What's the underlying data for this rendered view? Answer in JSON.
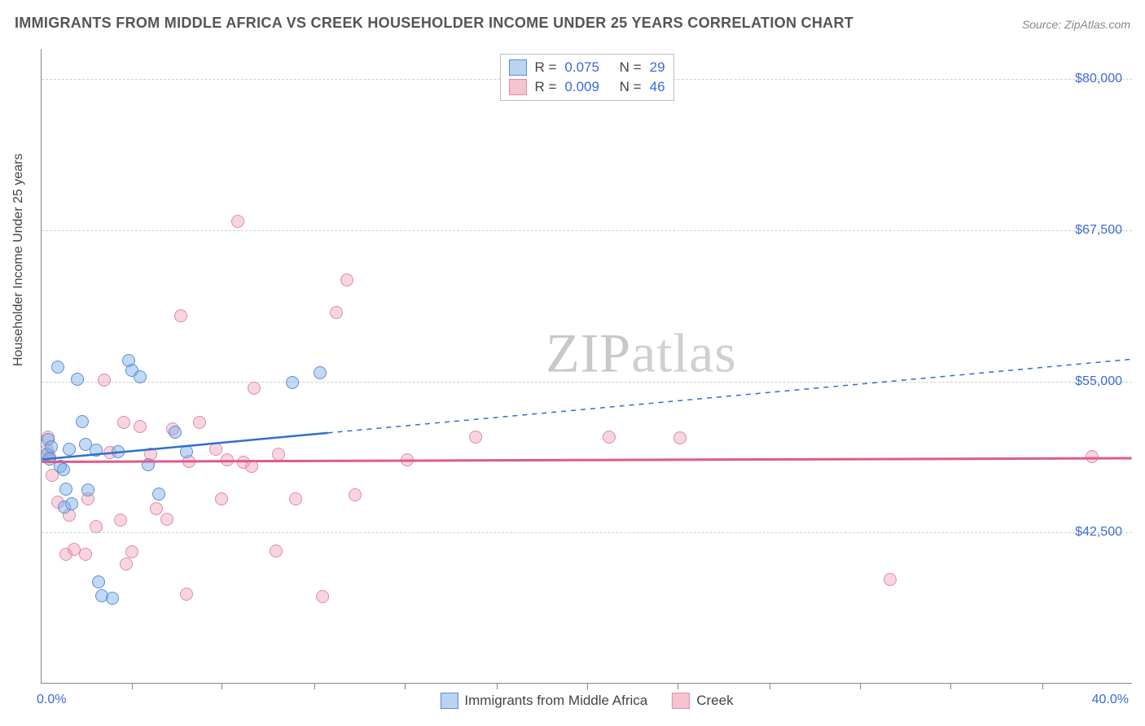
{
  "title": "IMMIGRANTS FROM MIDDLE AFRICA VS CREEK HOUSEHOLDER INCOME UNDER 25 YEARS CORRELATION CHART",
  "source_label": "Source:",
  "source_name": "ZipAtlas.com",
  "ylabel": "Householder Income Under 25 years",
  "watermark_a": "ZIP",
  "watermark_b": "atlas",
  "chart": {
    "type": "scatter",
    "xlim": [
      0,
      40
    ],
    "ylim": [
      30000,
      82500
    ],
    "x_min_label": "0.0%",
    "x_max_label": "40.0%",
    "x_tick_positions": [
      3.3,
      6.6,
      10,
      13.3,
      16.7,
      20,
      23.3,
      26.7,
      30,
      33.3,
      36.7
    ],
    "y_ticks": [
      {
        "v": 42500,
        "label": "$42,500"
      },
      {
        "v": 55000,
        "label": "$55,000"
      },
      {
        "v": 67500,
        "label": "$67,500"
      },
      {
        "v": 80000,
        "label": "$80,000"
      }
    ],
    "background_color": "#ffffff",
    "grid_color": "#d0d0d0",
    "axis_color": "#888888",
    "marker_radius": 8,
    "marker_stroke_width": 1.5
  },
  "series": {
    "blue": {
      "name": "Immigrants from Middle Africa",
      "fill": "#b9d3f0",
      "fill_alpha": "rgba(120,170,230,0.45)",
      "stroke": "#5a8fd6",
      "line_color": "#2f6fd0",
      "R": "0.075",
      "N": "29",
      "trend": {
        "x1": 0,
        "y1": 48500,
        "x2_solid": 10.5,
        "y2_solid": 50700,
        "x2_dash": 40,
        "y2_dash": 56800,
        "width": 2.5
      },
      "points": [
        {
          "x": 0.2,
          "y": 49000
        },
        {
          "x": 0.25,
          "y": 50200
        },
        {
          "x": 0.3,
          "y": 48600
        },
        {
          "x": 0.35,
          "y": 49600
        },
        {
          "x": 0.6,
          "y": 56200
        },
        {
          "x": 0.7,
          "y": 48000
        },
        {
          "x": 0.8,
          "y": 47700
        },
        {
          "x": 0.85,
          "y": 44600
        },
        {
          "x": 0.9,
          "y": 46100
        },
        {
          "x": 1.0,
          "y": 49400
        },
        {
          "x": 1.1,
          "y": 44900
        },
        {
          "x": 1.3,
          "y": 55200
        },
        {
          "x": 1.5,
          "y": 51700
        },
        {
          "x": 1.6,
          "y": 49800
        },
        {
          "x": 1.7,
          "y": 46000
        },
        {
          "x": 2.0,
          "y": 49300
        },
        {
          "x": 2.1,
          "y": 38400
        },
        {
          "x": 2.2,
          "y": 37300
        },
        {
          "x": 2.6,
          "y": 37100
        },
        {
          "x": 2.8,
          "y": 49200
        },
        {
          "x": 3.2,
          "y": 56700
        },
        {
          "x": 3.3,
          "y": 55900
        },
        {
          "x": 3.6,
          "y": 55400
        },
        {
          "x": 3.9,
          "y": 48100
        },
        {
          "x": 4.3,
          "y": 45700
        },
        {
          "x": 4.9,
          "y": 50800
        },
        {
          "x": 5.3,
          "y": 49200
        },
        {
          "x": 9.2,
          "y": 54900
        },
        {
          "x": 10.2,
          "y": 55700
        }
      ]
    },
    "pink": {
      "name": "Creek",
      "fill": "#f5c4d0",
      "fill_alpha": "rgba(235,150,175,0.40)",
      "stroke": "#e58aa5",
      "line_color": "#e05a8a",
      "R": "0.009",
      "N": "46",
      "trend": {
        "x1": 0,
        "y1": 48300,
        "x2": 40,
        "y2": 48600,
        "width": 3
      },
      "points": [
        {
          "x": 0.2,
          "y": 49300
        },
        {
          "x": 0.25,
          "y": 50400
        },
        {
          "x": 0.3,
          "y": 48800
        },
        {
          "x": 0.4,
          "y": 47200
        },
        {
          "x": 0.6,
          "y": 45000
        },
        {
          "x": 0.9,
          "y": 40700
        },
        {
          "x": 1.0,
          "y": 43900
        },
        {
          "x": 1.2,
          "y": 41100
        },
        {
          "x": 1.6,
          "y": 40700
        },
        {
          "x": 1.7,
          "y": 45300
        },
        {
          "x": 2.0,
          "y": 43000
        },
        {
          "x": 2.3,
          "y": 55100
        },
        {
          "x": 2.5,
          "y": 49100
        },
        {
          "x": 2.9,
          "y": 43500
        },
        {
          "x": 3.0,
          "y": 51600
        },
        {
          "x": 3.1,
          "y": 39900
        },
        {
          "x": 3.3,
          "y": 40900
        },
        {
          "x": 3.6,
          "y": 51300
        },
        {
          "x": 4.0,
          "y": 49000
        },
        {
          "x": 4.2,
          "y": 44500
        },
        {
          "x": 4.6,
          "y": 43600
        },
        {
          "x": 4.8,
          "y": 51100
        },
        {
          "x": 5.1,
          "y": 60400
        },
        {
          "x": 5.3,
          "y": 37400
        },
        {
          "x": 5.4,
          "y": 48400
        },
        {
          "x": 5.8,
          "y": 51600
        },
        {
          "x": 6.4,
          "y": 49400
        },
        {
          "x": 6.6,
          "y": 45300
        },
        {
          "x": 6.8,
          "y": 48500
        },
        {
          "x": 7.2,
          "y": 68200
        },
        {
          "x": 7.4,
          "y": 48300
        },
        {
          "x": 7.7,
          "y": 48000
        },
        {
          "x": 7.8,
          "y": 54400
        },
        {
          "x": 8.6,
          "y": 41000
        },
        {
          "x": 8.7,
          "y": 49000
        },
        {
          "x": 9.3,
          "y": 45300
        },
        {
          "x": 10.3,
          "y": 37200
        },
        {
          "x": 10.8,
          "y": 60700
        },
        {
          "x": 11.2,
          "y": 63400
        },
        {
          "x": 11.5,
          "y": 45600
        },
        {
          "x": 13.4,
          "y": 48500
        },
        {
          "x": 15.9,
          "y": 50400
        },
        {
          "x": 20.8,
          "y": 50400
        },
        {
          "x": 23.4,
          "y": 50300
        },
        {
          "x": 31.1,
          "y": 38600
        },
        {
          "x": 38.5,
          "y": 48800
        }
      ]
    }
  },
  "legend_top": {
    "R_label": "R =",
    "N_label": "N ="
  }
}
